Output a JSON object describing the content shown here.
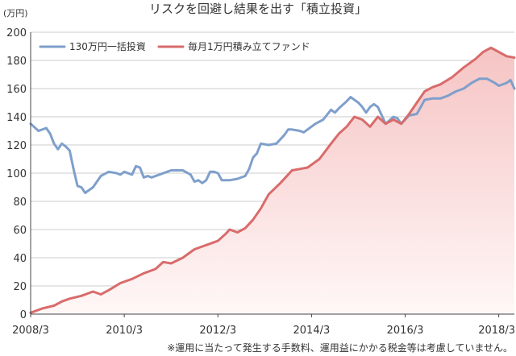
{
  "colors": {
    "lump": "#7f9fcb",
    "tsumitate": "#d96b6b",
    "area_top": "#f6c4c4",
    "area_bottom": "#fff7f7",
    "grid": "#cccccc",
    "axis": "#444444"
  },
  "chart_data": {
    "type": "line",
    "title": "リスクを回避し結果を出す「積立投資」",
    "ylabel": "(万円)",
    "xlabel": "",
    "note": "※運用に当たって発生する手数料、運用益にかかる税金等は考慮していません。",
    "ylim": [
      0,
      200
    ],
    "xlim": [
      "2008-03",
      "2018-07"
    ],
    "y_ticks": [
      0,
      20,
      40,
      60,
      80,
      100,
      120,
      140,
      160,
      180,
      200
    ],
    "x_ticks": [
      "2008/3",
      "2010/3",
      "2012/3",
      "2014/3",
      "2016/3",
      "2018/3"
    ],
    "grid": true,
    "legend_position": "top-left",
    "series": [
      {
        "name": "130万円一括投資",
        "color": "#7f9fcb",
        "points": [
          [
            "2008-03",
            135
          ],
          [
            "2008-05",
            130
          ],
          [
            "2008-07",
            132
          ],
          [
            "2008-08",
            128
          ],
          [
            "2008-09",
            121
          ],
          [
            "2008-10",
            117
          ],
          [
            "2008-11",
            121
          ],
          [
            "2008-12",
            119
          ],
          [
            "2009-01",
            116
          ],
          [
            "2009-02",
            103
          ],
          [
            "2009-03",
            91
          ],
          [
            "2009-04",
            90
          ],
          [
            "2009-05",
            86
          ],
          [
            "2009-07",
            90
          ],
          [
            "2009-09",
            98
          ],
          [
            "2009-11",
            101
          ],
          [
            "2010-01",
            100
          ],
          [
            "2010-02",
            99
          ],
          [
            "2010-03",
            101
          ],
          [
            "2010-05",
            99
          ],
          [
            "2010-06",
            105
          ],
          [
            "2010-07",
            104
          ],
          [
            "2010-08",
            97
          ],
          [
            "2010-09",
            98
          ],
          [
            "2010-10",
            97
          ],
          [
            "2010-12",
            99
          ],
          [
            "2011-03",
            102
          ],
          [
            "2011-06",
            102
          ],
          [
            "2011-08",
            99
          ],
          [
            "2011-09",
            94
          ],
          [
            "2011-10",
            95
          ],
          [
            "2011-11",
            93
          ],
          [
            "2011-12",
            95
          ],
          [
            "2012-01",
            101
          ],
          [
            "2012-02",
            101
          ],
          [
            "2012-03",
            100
          ],
          [
            "2012-04",
            95
          ],
          [
            "2012-06",
            95
          ],
          [
            "2012-08",
            96
          ],
          [
            "2012-10",
            98
          ],
          [
            "2012-11",
            103
          ],
          [
            "2012-12",
            111
          ],
          [
            "2013-01",
            114
          ],
          [
            "2013-02",
            121
          ],
          [
            "2013-04",
            120
          ],
          [
            "2013-06",
            121
          ],
          [
            "2013-08",
            127
          ],
          [
            "2013-09",
            131
          ],
          [
            "2013-10",
            131
          ],
          [
            "2013-12",
            130
          ],
          [
            "2014-01",
            129
          ],
          [
            "2014-02",
            131
          ],
          [
            "2014-04",
            135
          ],
          [
            "2014-06",
            138
          ],
          [
            "2014-08",
            145
          ],
          [
            "2014-09",
            143
          ],
          [
            "2014-10",
            146
          ],
          [
            "2014-12",
            151
          ],
          [
            "2015-01",
            154
          ],
          [
            "2015-03",
            150
          ],
          [
            "2015-04",
            147
          ],
          [
            "2015-05",
            143
          ],
          [
            "2015-06",
            147
          ],
          [
            "2015-07",
            149
          ],
          [
            "2015-08",
            147
          ],
          [
            "2015-09",
            141
          ],
          [
            "2015-10",
            135
          ],
          [
            "2015-12",
            140
          ],
          [
            "2016-01",
            139
          ],
          [
            "2016-02",
            135
          ],
          [
            "2016-03",
            138
          ],
          [
            "2016-04",
            141
          ],
          [
            "2016-06",
            142
          ],
          [
            "2016-07",
            147
          ],
          [
            "2016-08",
            152
          ],
          [
            "2016-10",
            153
          ],
          [
            "2016-12",
            153
          ],
          [
            "2017-02",
            155
          ],
          [
            "2017-04",
            158
          ],
          [
            "2017-06",
            160
          ],
          [
            "2017-08",
            164
          ],
          [
            "2017-10",
            167
          ],
          [
            "2017-12",
            167
          ],
          [
            "2018-02",
            164
          ],
          [
            "2018-03",
            162
          ],
          [
            "2018-05",
            164
          ],
          [
            "2018-06",
            166
          ],
          [
            "2018-07",
            160
          ]
        ]
      },
      {
        "name": "毎月1万円積み立てファンド",
        "color": "#d96b6b",
        "points": [
          [
            "2008-03",
            1
          ],
          [
            "2008-06",
            4
          ],
          [
            "2008-09",
            6
          ],
          [
            "2008-11",
            9
          ],
          [
            "2009-01",
            11
          ],
          [
            "2009-04",
            13
          ],
          [
            "2009-07",
            16
          ],
          [
            "2009-09",
            14
          ],
          [
            "2009-11",
            17
          ],
          [
            "2010-02",
            22
          ],
          [
            "2010-05",
            25
          ],
          [
            "2010-08",
            29
          ],
          [
            "2010-11",
            32
          ],
          [
            "2011-01",
            37
          ],
          [
            "2011-03",
            36
          ],
          [
            "2011-06",
            40
          ],
          [
            "2011-09",
            46
          ],
          [
            "2011-12",
            49
          ],
          [
            "2012-02",
            51
          ],
          [
            "2012-03",
            52
          ],
          [
            "2012-05",
            57
          ],
          [
            "2012-06",
            60
          ],
          [
            "2012-08",
            58
          ],
          [
            "2012-10",
            61
          ],
          [
            "2012-12",
            67
          ],
          [
            "2013-02",
            75
          ],
          [
            "2013-04",
            85
          ],
          [
            "2013-07",
            93
          ],
          [
            "2013-09",
            99
          ],
          [
            "2013-10",
            102
          ],
          [
            "2013-12",
            103
          ],
          [
            "2014-02",
            104
          ],
          [
            "2014-05",
            110
          ],
          [
            "2014-08",
            121
          ],
          [
            "2014-10",
            128
          ],
          [
            "2014-12",
            133
          ],
          [
            "2015-02",
            140
          ],
          [
            "2015-04",
            138
          ],
          [
            "2015-06",
            133
          ],
          [
            "2015-08",
            140
          ],
          [
            "2015-10",
            135
          ],
          [
            "2015-12",
            138
          ],
          [
            "2016-02",
            135
          ],
          [
            "2016-04",
            142
          ],
          [
            "2016-06",
            150
          ],
          [
            "2016-08",
            158
          ],
          [
            "2016-10",
            161
          ],
          [
            "2016-12",
            163
          ],
          [
            "2017-03",
            168
          ],
          [
            "2017-06",
            175
          ],
          [
            "2017-09",
            181
          ],
          [
            "2017-11",
            186
          ],
          [
            "2018-01",
            189
          ],
          [
            "2018-03",
            186
          ],
          [
            "2018-05",
            183
          ],
          [
            "2018-07",
            182
          ]
        ]
      }
    ]
  }
}
